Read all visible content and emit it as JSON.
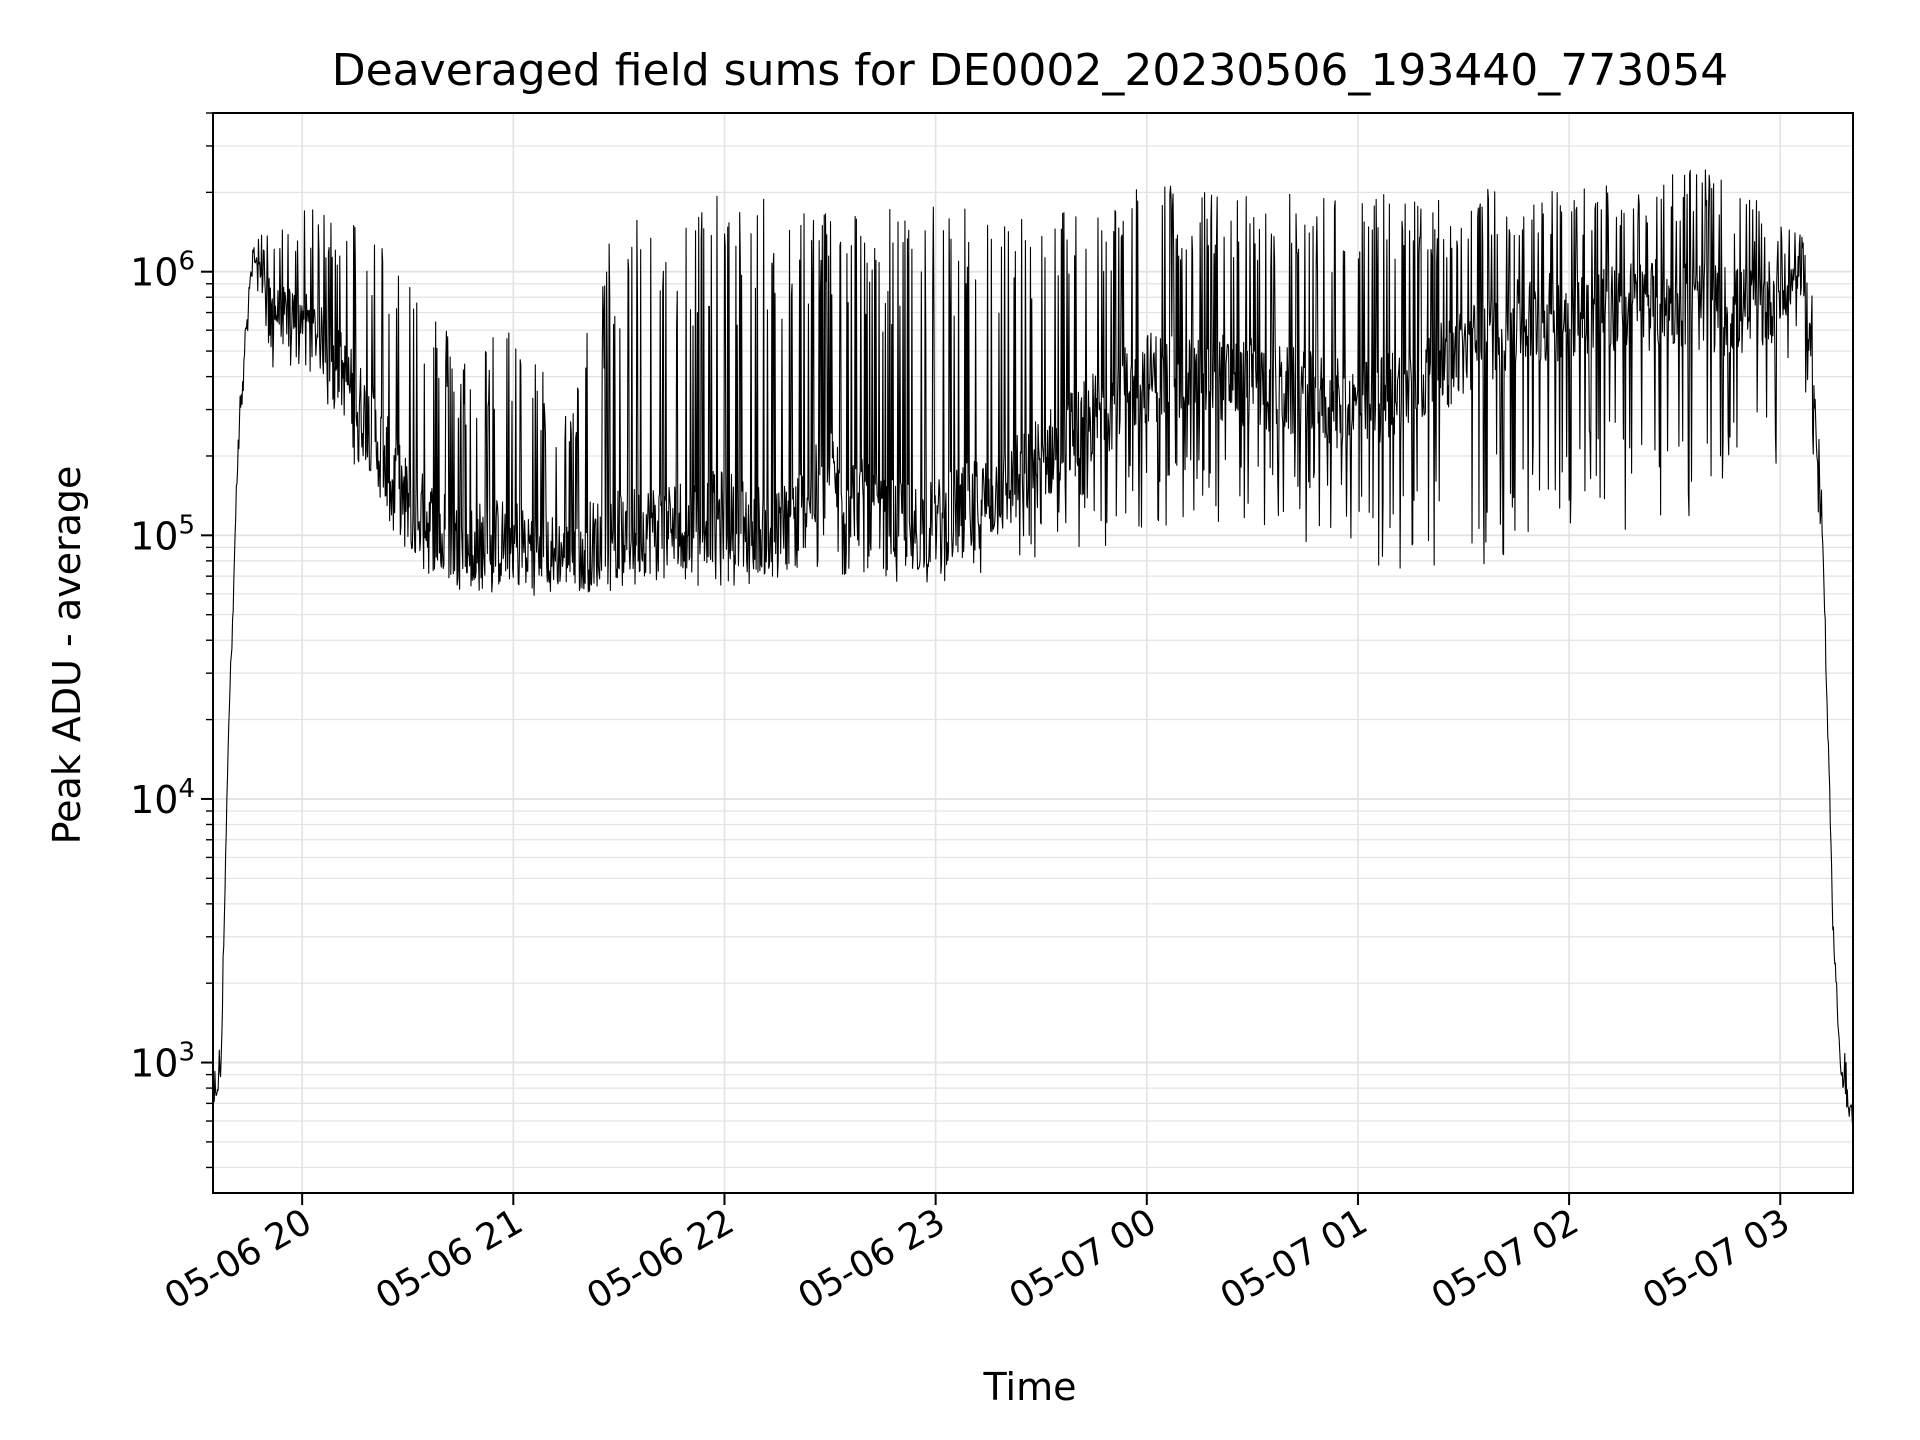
{
  "chart_data": {
    "type": "line",
    "title": "Deaveraged field sums for DE0002_20230506_193440_773054",
    "xlabel": "Time",
    "ylabel": "Peak ADU - average",
    "yscale": "log",
    "ylim": [
      320,
      4000000
    ],
    "xlim": [
      "2023-05-06T19:34:40",
      "2023-05-07T03:20:40"
    ],
    "grid": true,
    "line_color": "#000000",
    "x_ticks": [
      {
        "value": "2023-05-06T20:00:00",
        "label": "05-06 20"
      },
      {
        "value": "2023-05-06T21:00:00",
        "label": "05-06 21"
      },
      {
        "value": "2023-05-06T22:00:00",
        "label": "05-06 22"
      },
      {
        "value": "2023-05-06T23:00:00",
        "label": "05-06 23"
      },
      {
        "value": "2023-05-07T00:00:00",
        "label": "05-07 00"
      },
      {
        "value": "2023-05-07T01:00:00",
        "label": "05-07 01"
      },
      {
        "value": "2023-05-07T02:00:00",
        "label": "05-07 02"
      },
      {
        "value": "2023-05-07T03:00:00",
        "label": "05-07 03"
      }
    ],
    "y_ticks": [
      {
        "value": 1000,
        "base": "10",
        "exp": "3"
      },
      {
        "value": 10000,
        "base": "10",
        "exp": "4"
      },
      {
        "value": 100000,
        "base": "10",
        "exp": "5"
      },
      {
        "value": 1000000,
        "base": "10",
        "exp": "6"
      }
    ],
    "envelope": [
      {
        "t": "2023-05-06T19:34:40",
        "low": 550,
        "high": 850,
        "mid": 650
      },
      {
        "t": "2023-05-06T19:37:00",
        "low": 900,
        "high": 1300,
        "mid": 1000
      },
      {
        "t": "2023-05-06T19:39:00",
        "low": 15000,
        "high": 20000,
        "mid": 17000
      },
      {
        "t": "2023-05-06T19:42:00",
        "low": 200000,
        "high": 300000,
        "mid": 250000
      },
      {
        "t": "2023-05-06T19:46:00",
        "low": 1000000,
        "high": 1400000,
        "mid": 1200000
      },
      {
        "t": "2023-05-06T19:52:00",
        "low": 400000,
        "high": 1400000,
        "mid": 700000
      },
      {
        "t": "2023-05-06T20:00:00",
        "low": 450000,
        "high": 1700000,
        "mid": 700000
      },
      {
        "t": "2023-05-06T20:10:00",
        "low": 250000,
        "high": 1800000,
        "mid": 450000
      },
      {
        "t": "2023-05-06T20:20:00",
        "low": 130000,
        "high": 1500000,
        "mid": 250000
      },
      {
        "t": "2023-05-06T20:30:00",
        "low": 80000,
        "high": 1200000,
        "mid": 130000
      },
      {
        "t": "2023-05-06T20:45:00",
        "low": 60000,
        "high": 500000,
        "mid": 90000
      },
      {
        "t": "2023-05-06T21:00:00",
        "low": 60000,
        "high": 700000,
        "mid": 95000
      },
      {
        "t": "2023-05-06T21:15:00",
        "low": 58000,
        "high": 300000,
        "mid": 85000
      },
      {
        "t": "2023-05-06T21:30:00",
        "low": 62000,
        "high": 1900000,
        "mid": 100000
      },
      {
        "t": "2023-05-06T21:45:00",
        "low": 65000,
        "high": 1900000,
        "mid": 110000
      },
      {
        "t": "2023-05-06T22:00:00",
        "low": 62000,
        "high": 1950000,
        "mid": 120000
      },
      {
        "t": "2023-05-06T22:15:00",
        "low": 65000,
        "high": 1900000,
        "mid": 100000
      },
      {
        "t": "2023-05-06T22:30:00",
        "low": 70000,
        "high": 1900000,
        "mid": 170000
      },
      {
        "t": "2023-05-06T22:45:00",
        "low": 65000,
        "high": 1800000,
        "mid": 110000
      },
      {
        "t": "2023-05-06T23:00:00",
        "low": 65000,
        "high": 1800000,
        "mid": 110000
      },
      {
        "t": "2023-05-06T23:20:00",
        "low": 68000,
        "high": 1700000,
        "mid": 150000
      },
      {
        "t": "2023-05-06T23:40:00",
        "low": 80000,
        "high": 1800000,
        "mid": 250000
      },
      {
        "t": "2023-05-07T00:00:00",
        "low": 100000,
        "high": 2300000,
        "mid": 400000
      },
      {
        "t": "2023-05-07T00:20:00",
        "low": 100000,
        "high": 2000000,
        "mid": 400000
      },
      {
        "t": "2023-05-07T00:40:00",
        "low": 100000,
        "high": 2000000,
        "mid": 350000
      },
      {
        "t": "2023-05-07T01:00:00",
        "low": 80000,
        "high": 2000000,
        "mid": 300000
      },
      {
        "t": "2023-05-07T01:20:00",
        "low": 60000,
        "high": 2000000,
        "mid": 400000
      },
      {
        "t": "2023-05-07T01:40:00",
        "low": 80000,
        "high": 2100000,
        "mid": 600000
      },
      {
        "t": "2023-05-07T02:00:00",
        "low": 110000,
        "high": 2100000,
        "mid": 700000
      },
      {
        "t": "2023-05-07T02:20:00",
        "low": 100000,
        "high": 2300000,
        "mid": 750000
      },
      {
        "t": "2023-05-07T02:35:00",
        "low": 110000,
        "high": 2600000,
        "mid": 750000
      },
      {
        "t": "2023-05-07T02:50:00",
        "low": 200000,
        "high": 2000000,
        "mid": 700000
      },
      {
        "t": "2023-05-07T03:00:00",
        "low": 180000,
        "high": 1600000,
        "mid": 800000
      },
      {
        "t": "2023-05-07T03:05:00",
        "low": 700000,
        "high": 1600000,
        "mid": 1000000
      },
      {
        "t": "2023-05-07T03:09:00",
        "low": 200000,
        "high": 900000,
        "mid": 500000
      },
      {
        "t": "2023-05-07T03:12:00",
        "low": 80000,
        "high": 130000,
        "mid": 100000
      },
      {
        "t": "2023-05-07T03:15:00",
        "low": 2500,
        "high": 3500,
        "mid": 3000
      },
      {
        "t": "2023-05-07T03:17:00",
        "low": 900,
        "high": 1300,
        "mid": 1000
      },
      {
        "t": "2023-05-07T03:20:40",
        "low": 500,
        "high": 800,
        "mid": 600
      }
    ]
  }
}
